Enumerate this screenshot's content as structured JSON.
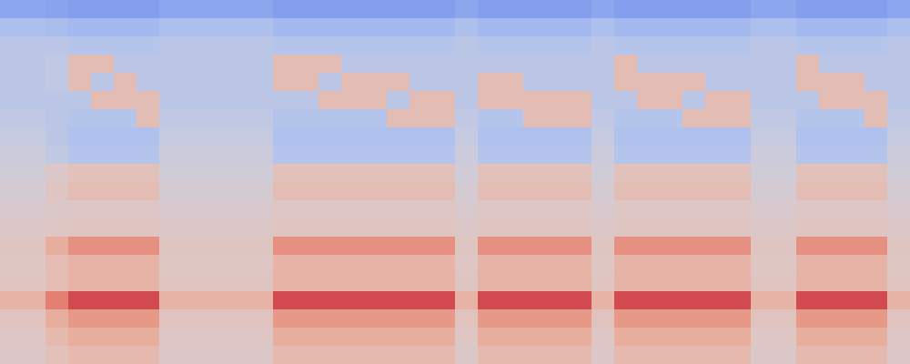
{
  "chart_data": {
    "type": "heatmap",
    "color": "coolwarm",
    "tick_labels": false,
    "zlim": [
      0,
      100
    ],
    "cells": [
      [
        25,
        25,
        24,
        22,
        22,
        22,
        22,
        25,
        25,
        25,
        25,
        25,
        22,
        22,
        22,
        22,
        22,
        22,
        22,
        22,
        25,
        22,
        22,
        22,
        22,
        22,
        25,
        22,
        22,
        22,
        22,
        22,
        22,
        25,
        25,
        22,
        22,
        22,
        22,
        25
      ],
      [
        35,
        35,
        34,
        32,
        32,
        32,
        32,
        35,
        35,
        35,
        35,
        35,
        32,
        32,
        32,
        32,
        32,
        32,
        32,
        32,
        35,
        32,
        32,
        32,
        32,
        32,
        35,
        32,
        32,
        32,
        32,
        32,
        32,
        35,
        35,
        32,
        32,
        32,
        32,
        35
      ],
      [
        40,
        40,
        40,
        38,
        38,
        38,
        38,
        40,
        40,
        40,
        40,
        40,
        38,
        38,
        38,
        38,
        38,
        38,
        38,
        38,
        40,
        38,
        38,
        38,
        38,
        38,
        40,
        38,
        38,
        38,
        38,
        38,
        38,
        40,
        40,
        38,
        38,
        38,
        38,
        40
      ],
      [
        40,
        40,
        42,
        60,
        60,
        40,
        40,
        40,
        40,
        40,
        40,
        40,
        60,
        60,
        60,
        40,
        40,
        40,
        40,
        40,
        40,
        40,
        40,
        40,
        40,
        40,
        40,
        60,
        40,
        40,
        40,
        40,
        40,
        40,
        40,
        60,
        40,
        40,
        40,
        40
      ],
      [
        40,
        40,
        42,
        60,
        40,
        60,
        40,
        40,
        40,
        40,
        40,
        40,
        60,
        60,
        40,
        60,
        60,
        60,
        40,
        40,
        40,
        60,
        60,
        40,
        40,
        40,
        40,
        60,
        60,
        60,
        60,
        40,
        40,
        40,
        40,
        60,
        60,
        60,
        40,
        40
      ],
      [
        40,
        40,
        40,
        40,
        60,
        60,
        60,
        40,
        40,
        40,
        40,
        40,
        40,
        40,
        60,
        60,
        60,
        40,
        60,
        60,
        40,
        60,
        60,
        60,
        60,
        60,
        40,
        40,
        60,
        60,
        40,
        60,
        60,
        40,
        40,
        40,
        60,
        60,
        60,
        40
      ],
      [
        42,
        42,
        40,
        38,
        38,
        38,
        60,
        42,
        42,
        42,
        42,
        42,
        38,
        38,
        38,
        38,
        38,
        60,
        60,
        60,
        42,
        38,
        38,
        60,
        60,
        60,
        42,
        38,
        38,
        38,
        60,
        60,
        60,
        42,
        42,
        38,
        38,
        38,
        60,
        42
      ],
      [
        44,
        44,
        40,
        36,
        36,
        36,
        36,
        44,
        44,
        44,
        44,
        44,
        36,
        36,
        36,
        36,
        36,
        36,
        36,
        36,
        44,
        36,
        36,
        36,
        36,
        36,
        44,
        36,
        36,
        36,
        36,
        36,
        36,
        44,
        44,
        36,
        36,
        36,
        36,
        44
      ],
      [
        46,
        46,
        42,
        38,
        38,
        38,
        38,
        46,
        46,
        46,
        46,
        46,
        38,
        38,
        38,
        38,
        38,
        38,
        38,
        38,
        46,
        38,
        38,
        38,
        38,
        38,
        46,
        38,
        38,
        38,
        38,
        38,
        38,
        46,
        46,
        38,
        38,
        38,
        38,
        46
      ],
      [
        48,
        48,
        54,
        58,
        58,
        58,
        58,
        48,
        48,
        48,
        48,
        48,
        58,
        58,
        58,
        58,
        58,
        58,
        58,
        58,
        48,
        58,
        58,
        58,
        58,
        58,
        48,
        58,
        58,
        58,
        58,
        58,
        58,
        48,
        48,
        58,
        58,
        58,
        58,
        48
      ],
      [
        50,
        50,
        56,
        60,
        60,
        60,
        60,
        50,
        50,
        50,
        50,
        50,
        60,
        60,
        60,
        60,
        60,
        60,
        60,
        60,
        50,
        60,
        60,
        60,
        60,
        60,
        50,
        60,
        60,
        60,
        60,
        60,
        60,
        50,
        50,
        60,
        60,
        60,
        60,
        50
      ],
      [
        52,
        52,
        54,
        55,
        55,
        55,
        55,
        52,
        52,
        52,
        52,
        52,
        55,
        55,
        55,
        55,
        55,
        55,
        55,
        55,
        52,
        55,
        55,
        55,
        55,
        55,
        52,
        55,
        55,
        55,
        55,
        55,
        55,
        52,
        52,
        55,
        55,
        55,
        55,
        52
      ],
      [
        54,
        54,
        55,
        56,
        56,
        56,
        56,
        54,
        54,
        54,
        54,
        54,
        56,
        56,
        56,
        56,
        56,
        56,
        56,
        56,
        54,
        56,
        56,
        56,
        56,
        56,
        54,
        56,
        56,
        56,
        56,
        56,
        56,
        54,
        54,
        56,
        56,
        56,
        56,
        54
      ],
      [
        56,
        56,
        66,
        74,
        74,
        74,
        74,
        56,
        56,
        56,
        56,
        56,
        74,
        74,
        74,
        74,
        74,
        74,
        74,
        74,
        56,
        74,
        74,
        74,
        74,
        74,
        56,
        74,
        74,
        74,
        74,
        74,
        74,
        56,
        56,
        74,
        74,
        74,
        74,
        56
      ],
      [
        55,
        55,
        60,
        64,
        64,
        64,
        64,
        55,
        55,
        55,
        55,
        55,
        64,
        64,
        64,
        64,
        64,
        64,
        64,
        64,
        55,
        64,
        64,
        64,
        64,
        64,
        55,
        64,
        64,
        64,
        64,
        64,
        64,
        55,
        55,
        64,
        64,
        64,
        64,
        55
      ],
      [
        56,
        56,
        60,
        64,
        64,
        64,
        64,
        56,
        56,
        56,
        56,
        56,
        64,
        64,
        64,
        64,
        64,
        64,
        64,
        64,
        56,
        64,
        64,
        64,
        64,
        64,
        56,
        64,
        64,
        64,
        64,
        64,
        64,
        56,
        56,
        64,
        64,
        64,
        64,
        56
      ],
      [
        64,
        64,
        78,
        88,
        88,
        88,
        88,
        64,
        64,
        64,
        64,
        64,
        88,
        88,
        88,
        88,
        88,
        88,
        88,
        88,
        64,
        88,
        88,
        88,
        88,
        88,
        64,
        88,
        88,
        88,
        88,
        88,
        88,
        64,
        64,
        88,
        88,
        88,
        88,
        64
      ],
      [
        57,
        57,
        66,
        72,
        72,
        72,
        72,
        57,
        57,
        57,
        57,
        57,
        72,
        72,
        72,
        72,
        72,
        72,
        72,
        72,
        57,
        72,
        72,
        72,
        72,
        72,
        57,
        72,
        72,
        72,
        72,
        72,
        72,
        57,
        57,
        72,
        72,
        72,
        72,
        57
      ],
      [
        55,
        55,
        62,
        66,
        66,
        66,
        66,
        55,
        55,
        55,
        55,
        55,
        66,
        66,
        66,
        66,
        66,
        66,
        66,
        66,
        55,
        66,
        66,
        66,
        66,
        66,
        55,
        66,
        66,
        66,
        66,
        66,
        66,
        55,
        55,
        66,
        66,
        66,
        66,
        55
      ],
      [
        54,
        54,
        58,
        62,
        62,
        62,
        62,
        54,
        54,
        54,
        54,
        54,
        62,
        62,
        62,
        62,
        62,
        62,
        62,
        62,
        54,
        62,
        62,
        62,
        62,
        62,
        54,
        62,
        62,
        62,
        62,
        62,
        62,
        54,
        54,
        62,
        62,
        62,
        62,
        54
      ]
    ]
  }
}
